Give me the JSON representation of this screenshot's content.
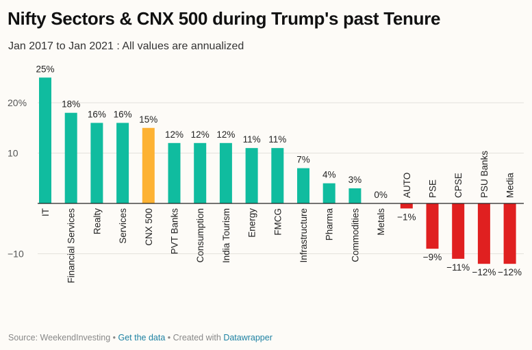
{
  "header": {
    "title": "Nifty Sectors & CNX 500 during Trump's past Tenure",
    "subtitle": "Jan 2017 to Jan 2021 : All values are annualized"
  },
  "footer": {
    "source_label": "Source: WeekendInvesting",
    "separator": " • ",
    "get_data_label": "Get the data",
    "created_with_label": "Created with",
    "tool_label": "Datawrapper"
  },
  "colors": {
    "positive": "#10bc9f",
    "highlight": "#fdb233",
    "negative": "#e02020"
  },
  "chart_data": {
    "type": "bar",
    "categories": [
      "IT",
      "Financial Services",
      "Realty",
      "Services",
      "CNX 500",
      "PVT Banks",
      "Consumption",
      "India Tourism",
      "Energy",
      "FMCG",
      "Infrastructure",
      "Pharma",
      "Commodities",
      "Metals",
      "AUTO",
      "PSE",
      "CPSE",
      "PSU Banks",
      "Media"
    ],
    "values": [
      25,
      18,
      16,
      16,
      15,
      12,
      12,
      12,
      11,
      11,
      7,
      4,
      3,
      0,
      -1,
      -9,
      -11,
      -12,
      -12
    ],
    "value_labels": [
      "25%",
      "18%",
      "16%",
      "16%",
      "15%",
      "12%",
      "12%",
      "12%",
      "11%",
      "11%",
      "7%",
      "4%",
      "3%",
      "0%",
      "−1%",
      "−9%",
      "−11%",
      "−12%",
      "−12%"
    ],
    "highlight_category": "CNX 500",
    "y_ticks": [
      {
        "value": 20,
        "label": "20%"
      },
      {
        "value": 10,
        "label": "10"
      },
      {
        "value": -10,
        "label": "−10"
      }
    ],
    "ylim": [
      -12,
      25
    ],
    "grid": true,
    "xlabel": "",
    "ylabel": ""
  }
}
